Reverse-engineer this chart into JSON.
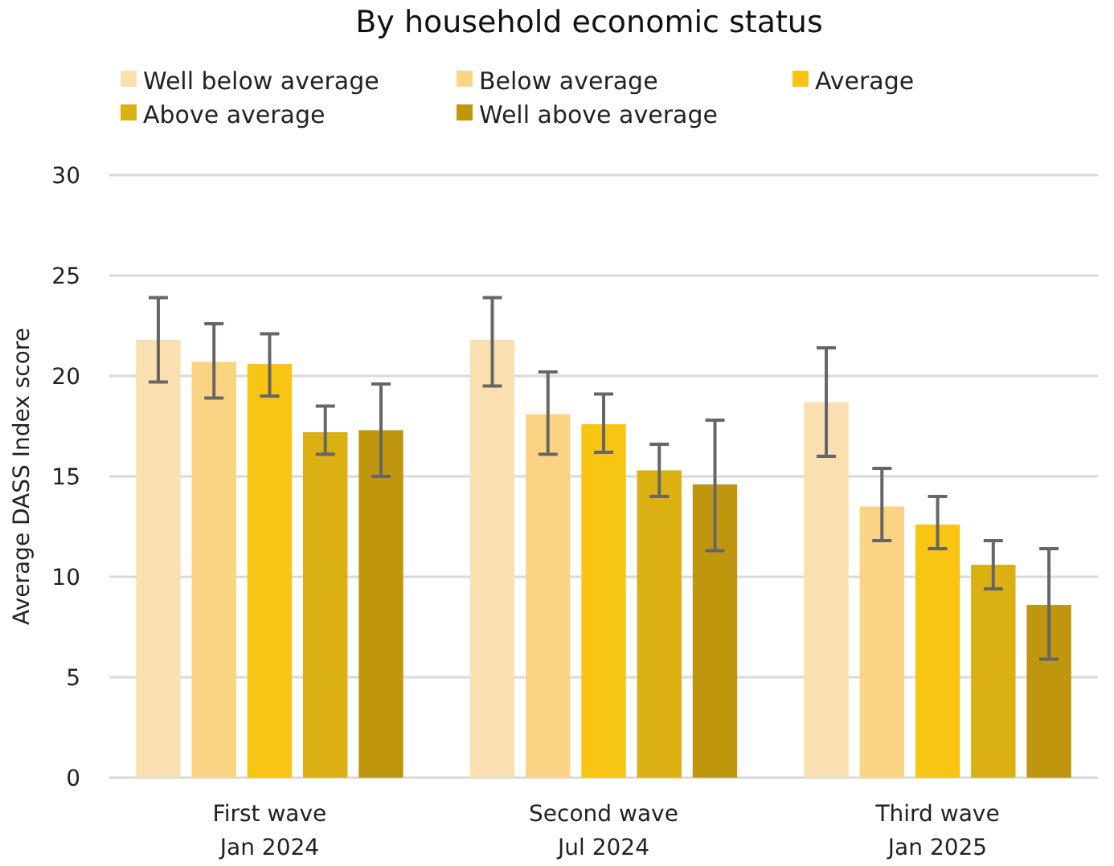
{
  "chart_data": {
    "type": "bar",
    "title": "By household economic status",
    "ylabel": "Average DASS Index score",
    "categories": [
      "First wave\nJan 2024",
      "Second wave\nJul 2024",
      "Third wave\nJan 2025"
    ],
    "ylim": [
      0,
      30
    ],
    "yticks": [
      0,
      5,
      10,
      15,
      20,
      25,
      30
    ],
    "grid": "y",
    "legend": "top",
    "series": [
      {
        "name": "Well below average",
        "color": "#fae0b0",
        "values": [
          21.8,
          21.8,
          18.7
        ],
        "errors": [
          [
            19.7,
            23.9
          ],
          [
            19.5,
            23.9
          ],
          [
            16.0,
            21.4
          ]
        ]
      },
      {
        "name": "Below average",
        "color": "#fad482",
        "values": [
          20.7,
          18.1,
          13.5
        ],
        "errors": [
          [
            18.9,
            22.6
          ],
          [
            16.1,
            20.2
          ],
          [
            11.8,
            15.4
          ]
        ]
      },
      {
        "name": "Average",
        "color": "#f9c515",
        "values": [
          20.6,
          17.6,
          12.6
        ],
        "errors": [
          [
            19.0,
            22.1
          ],
          [
            16.2,
            19.1
          ],
          [
            11.4,
            14.0
          ]
        ]
      },
      {
        "name": "Above average",
        "color": "#dbb012",
        "values": [
          17.2,
          15.3,
          10.6
        ],
        "errors": [
          [
            16.1,
            18.5
          ],
          [
            14.0,
            16.6
          ],
          [
            9.4,
            11.8
          ]
        ]
      },
      {
        "name": "Well above average",
        "color": "#bf960d",
        "values": [
          17.3,
          14.6,
          8.6
        ],
        "errors": [
          [
            15.0,
            19.6
          ],
          [
            11.3,
            17.8
          ],
          [
            5.9,
            11.4
          ]
        ]
      }
    ]
  }
}
